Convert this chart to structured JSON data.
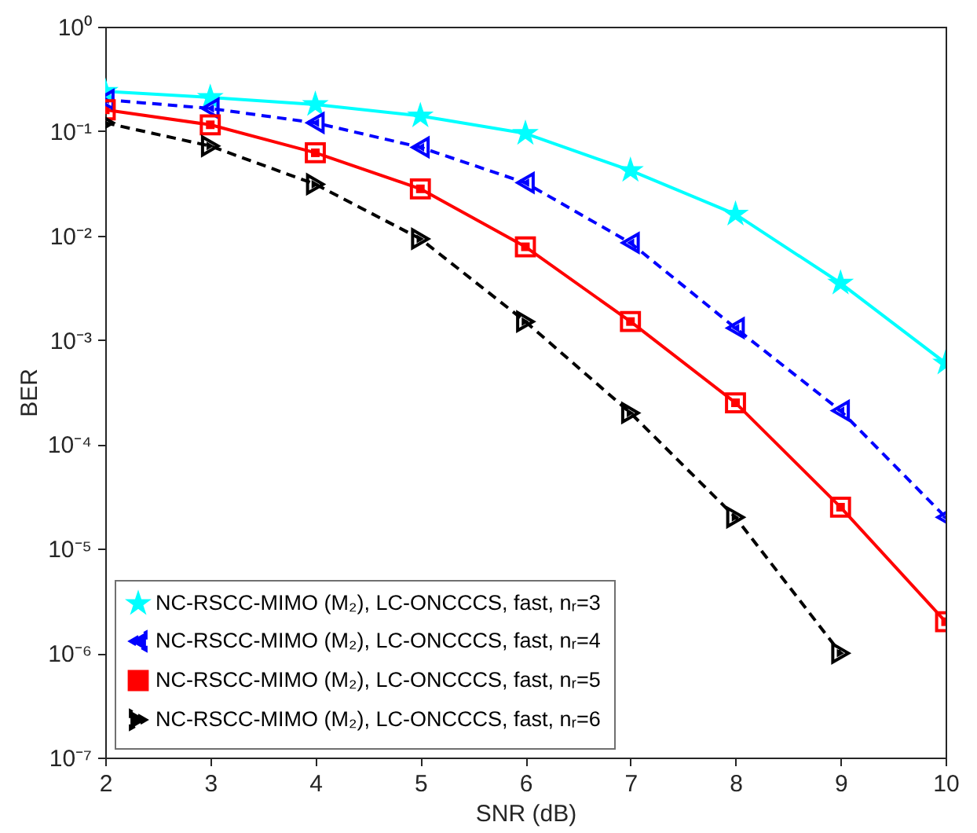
{
  "chart_data": {
    "type": "line",
    "xlabel": "SNR (dB)",
    "ylabel": "BER",
    "x": [
      2,
      3,
      4,
      5,
      6,
      7,
      8,
      9,
      10
    ],
    "series": [
      {
        "name": "NC-RSCC-MIMO (M₂), LC-ONCCCS, fast, nᵣ=3",
        "color": "#00ffff",
        "marker": "star",
        "line_style": "solid",
        "values": [
          0.24,
          0.21,
          0.18,
          0.14,
          0.095,
          0.042,
          0.016,
          0.0035,
          0.0006
        ]
      },
      {
        "name": "NC-RSCC-MIMO (M₂), LC-ONCCCS, fast, nᵣ=4",
        "color": "#0000ff",
        "marker": "triangle",
        "line_style": "dashed",
        "values": [
          0.2,
          0.165,
          0.12,
          0.07,
          0.032,
          0.0085,
          0.0013,
          0.00021,
          2e-05
        ]
      },
      {
        "name": "NC-RSCC-MIMO (M₂), LC-ONCCCS, fast, nᵣ=5",
        "color": "#ff0000",
        "marker": "square",
        "line_style": "solid",
        "values": [
          0.16,
          0.115,
          0.062,
          0.028,
          0.0078,
          0.0015,
          0.00025,
          2.5e-05,
          2e-06
        ]
      },
      {
        "name": "NC-RSCC-MIMO (M₂), LC-ONCCCS, fast, nᵣ=6",
        "color": "#000000",
        "marker": "triangle",
        "line_style": "dashed",
        "values": [
          0.12,
          0.072,
          0.031,
          0.0093,
          0.0015,
          0.0002,
          2e-05,
          1e-06,
          null
        ]
      }
    ],
    "xlim": [
      2,
      10
    ],
    "xticks": [
      2,
      3,
      4,
      5,
      6,
      7,
      8,
      9,
      10
    ],
    "ylim": [
      1e-07,
      1
    ],
    "log": "y",
    "yticks": [
      {
        "value": 1e-07,
        "label": "10⁻⁷"
      },
      {
        "value": 1e-06,
        "label": "10⁻⁶"
      },
      {
        "value": 1e-05,
        "label": "10⁻⁵"
      },
      {
        "value": 0.0001,
        "label": "10⁻⁴"
      },
      {
        "value": 0.001,
        "label": "10⁻³"
      },
      {
        "value": 0.01,
        "label": "10⁻²"
      },
      {
        "value": 0.1,
        "label": "10⁻¹"
      },
      {
        "value": 1,
        "label": "10⁰"
      }
    ],
    "grid": false,
    "legend": "bottom left"
  }
}
